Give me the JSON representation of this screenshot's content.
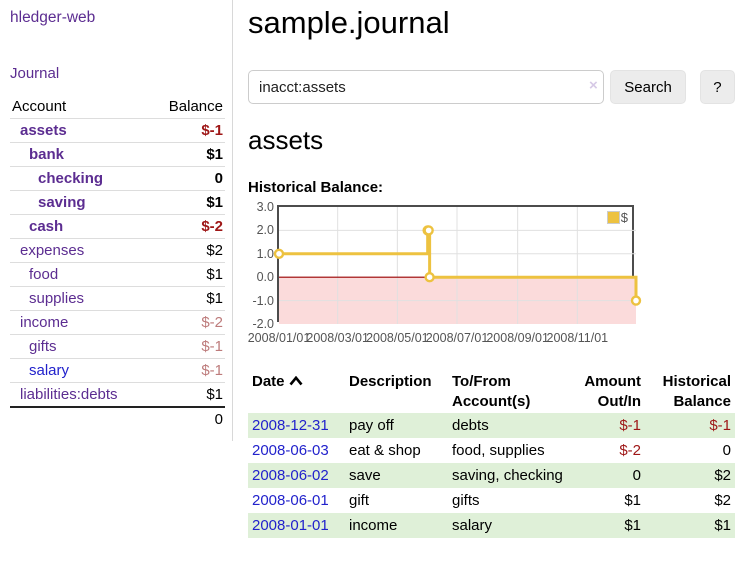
{
  "colors": {
    "purple": "#5c2d91",
    "link_blue": "#2222cc",
    "dark_red": "#9e1616",
    "rose": "#bd7b7b",
    "stripe_green": "#dff0d8",
    "button_bg": "#ececec"
  },
  "app": {
    "brand": "hledger-web",
    "nav_journal": "Journal"
  },
  "sidebar": {
    "table_header": {
      "account": "Account",
      "balance": "Balance"
    },
    "accounts": [
      {
        "label": "assets",
        "indent": 1,
        "current": true,
        "balance": "$-1",
        "negative": true,
        "link_style": "purple"
      },
      {
        "label": "bank",
        "indent": 2,
        "current": true,
        "balance": "$1",
        "negative": false,
        "link_style": "purple"
      },
      {
        "label": "checking",
        "indent": 3,
        "current": true,
        "balance": "0",
        "negative": false,
        "link_style": "purple"
      },
      {
        "label": "saving",
        "indent": 3,
        "current": true,
        "balance": "$1",
        "negative": false,
        "link_style": "purple"
      },
      {
        "label": "cash",
        "indent": 2,
        "current": true,
        "balance": "$-2",
        "negative": true,
        "link_style": "purple"
      },
      {
        "label": "expenses",
        "indent": 1,
        "current": false,
        "balance": "$2",
        "negative": false,
        "link_style": "purple"
      },
      {
        "label": "food",
        "indent": 2,
        "current": false,
        "balance": "$1",
        "negative": false,
        "link_style": "purple"
      },
      {
        "label": "supplies",
        "indent": 2,
        "current": false,
        "balance": "$1",
        "negative": false,
        "link_style": "purple"
      },
      {
        "label": "income",
        "indent": 1,
        "current": false,
        "balance": "$-2",
        "negative": true,
        "link_style": "purple"
      },
      {
        "label": "gifts",
        "indent": 2,
        "current": false,
        "balance": "$-1",
        "negative": true,
        "link_style": "purple"
      },
      {
        "label": "salary",
        "indent": 2,
        "current": false,
        "balance": "$-1",
        "negative": true,
        "link_style": "blue"
      },
      {
        "label": "liabilities:debts",
        "indent": 1,
        "current": false,
        "balance": "$1",
        "negative": false,
        "link_style": "purple"
      }
    ],
    "total": "0"
  },
  "header": {
    "title": "sample.journal"
  },
  "search": {
    "value": "inacct:assets",
    "clear_icon": "×",
    "search_button": "Search",
    "help_button": "?"
  },
  "account_page": {
    "heading": "assets",
    "chart_label": "Historical Balance:"
  },
  "chart_data": {
    "type": "line",
    "step": true,
    "grid": true,
    "legend_position": "top-right",
    "series": [
      {
        "name": "$",
        "color": "#edc240",
        "points": [
          [
            "2008-01-01",
            1
          ],
          [
            "2008-06-01",
            2
          ],
          [
            "2008-06-02",
            2
          ],
          [
            "2008-06-03",
            0
          ],
          [
            "2008-12-31",
            -1
          ]
        ]
      }
    ],
    "xlim": [
      "2008-01-01",
      "2008-12-31"
    ],
    "ylim": [
      -2,
      3
    ],
    "y_ticks": [
      3,
      2,
      1,
      0,
      -1,
      -2
    ],
    "x_ticks": [
      "2008/01/01",
      "2008/03/01",
      "2008/05/01",
      "2008/07/01",
      "2008/09/01",
      "2008/11/01"
    ],
    "negative_region_color": "#fbdbdb",
    "zero_line_color": "#990000",
    "grid_color": "#e0e0e0",
    "border_color": "#4c4c4c",
    "marker": "open-circle"
  },
  "register": {
    "columns": [
      "Date",
      "Description",
      "To/From Account(s)",
      "Amount Out/In",
      "Historical Balance"
    ],
    "rows": [
      {
        "date": "2008-12-31",
        "description": "pay off",
        "accounts": "debts",
        "amount": "$-1",
        "amount_negative": true,
        "balance": "$-1",
        "balance_negative": true
      },
      {
        "date": "2008-06-03",
        "description": "eat & shop",
        "accounts": "food, supplies",
        "amount": "$-2",
        "amount_negative": true,
        "balance": "0",
        "balance_negative": false
      },
      {
        "date": "2008-06-02",
        "description": "save",
        "accounts": "saving, checking",
        "amount": "0",
        "amount_negative": false,
        "balance": "$2",
        "balance_negative": false
      },
      {
        "date": "2008-06-01",
        "description": "gift",
        "accounts": "gifts",
        "amount": "$1",
        "amount_negative": false,
        "balance": "$2",
        "balance_negative": false
      },
      {
        "date": "2008-01-01",
        "description": "income",
        "accounts": "salary",
        "amount": "$1",
        "amount_negative": false,
        "balance": "$1",
        "balance_negative": false
      }
    ]
  }
}
